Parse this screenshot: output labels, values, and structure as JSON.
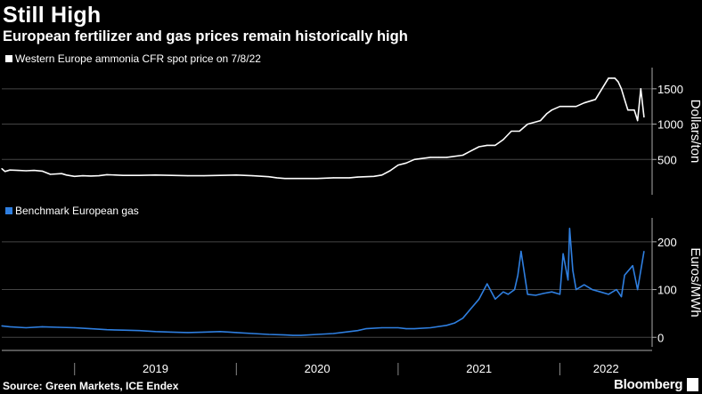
{
  "header": {
    "title": "Still High",
    "subtitle": "European fertilizer and gas prices remain historically high"
  },
  "footer": {
    "source": "Source: Green Markets, ICE Endex",
    "brand": "Bloomberg"
  },
  "colors": {
    "ammonia": "#ffffff",
    "gas": "#2f7fe0",
    "grid": "#444444",
    "background": "#000000"
  },
  "chart_data": [
    {
      "type": "line",
      "title": "",
      "ylabel": "Dollars/ton",
      "ylim": [
        0,
        1800
      ],
      "xlim": [
        2018.55,
        2022.57
      ],
      "x_ticks": [
        "2019",
        "2020",
        "2021",
        "2022"
      ],
      "y_ticks": [
        500,
        1000,
        1500
      ],
      "grid": true,
      "legend": "top-left",
      "series": [
        {
          "name": "Western Europe ammonia CFR spot price on 7/8/22",
          "x": [
            2018.55,
            2018.57,
            2018.6,
            2018.65,
            2018.7,
            2018.75,
            2018.8,
            2018.85,
            2018.92,
            2018.95,
            2019.0,
            2019.05,
            2019.1,
            2019.15,
            2019.2,
            2019.3,
            2019.4,
            2019.5,
            2019.6,
            2019.7,
            2019.8,
            2019.9,
            2020.0,
            2020.1,
            2020.2,
            2020.25,
            2020.3,
            2020.4,
            2020.5,
            2020.6,
            2020.7,
            2020.75,
            2020.85,
            2020.9,
            2020.95,
            2021.0,
            2021.05,
            2021.1,
            2021.2,
            2021.25,
            2021.3,
            2021.4,
            2021.45,
            2021.5,
            2021.55,
            2021.6,
            2021.65,
            2021.7,
            2021.75,
            2021.8,
            2021.88,
            2021.92,
            2021.95,
            2022.0,
            2022.05,
            2022.1,
            2022.15,
            2022.22,
            2022.3,
            2022.32,
            2022.34,
            2022.36,
            2022.38,
            2022.4,
            2022.42,
            2022.44,
            2022.46,
            2022.48,
            2022.5,
            2022.52
          ],
          "y": [
            370,
            330,
            350,
            345,
            340,
            345,
            335,
            290,
            300,
            280,
            260,
            270,
            265,
            270,
            285,
            275,
            275,
            280,
            275,
            270,
            270,
            275,
            280,
            270,
            255,
            240,
            230,
            230,
            230,
            240,
            240,
            250,
            260,
            280,
            340,
            420,
            450,
            500,
            530,
            530,
            530,
            560,
            620,
            680,
            700,
            700,
            780,
            900,
            900,
            1000,
            1050,
            1150,
            1200,
            1250,
            1250,
            1250,
            1300,
            1350,
            1650,
            1650,
            1650,
            1600,
            1500,
            1350,
            1200,
            1200,
            1200,
            1050,
            1500,
            1100
          ]
        }
      ]
    },
    {
      "type": "line",
      "title": "",
      "ylabel": "Euros/MWh",
      "ylim": [
        -20,
        250
      ],
      "xlim": [
        2018.55,
        2022.57
      ],
      "x_ticks": [
        "2019",
        "2020",
        "2021",
        "2022"
      ],
      "y_ticks": [
        0,
        100,
        200
      ],
      "grid": true,
      "legend": "top-left",
      "series": [
        {
          "name": "Benchmark European gas",
          "x": [
            2018.55,
            2018.6,
            2018.7,
            2018.8,
            2018.9,
            2019.0,
            2019.1,
            2019.2,
            2019.3,
            2019.4,
            2019.5,
            2019.6,
            2019.7,
            2019.8,
            2019.9,
            2020.0,
            2020.1,
            2020.2,
            2020.3,
            2020.35,
            2020.4,
            2020.5,
            2020.6,
            2020.7,
            2020.75,
            2020.8,
            2020.9,
            2021.0,
            2021.05,
            2021.1,
            2021.2,
            2021.3,
            2021.35,
            2021.4,
            2021.45,
            2021.5,
            2021.55,
            2021.6,
            2021.65,
            2021.68,
            2021.72,
            2021.74,
            2021.76,
            2021.8,
            2021.85,
            2021.9,
            2021.95,
            2022.0,
            2022.02,
            2022.05,
            2022.06,
            2022.08,
            2022.1,
            2022.15,
            2022.2,
            2022.25,
            2022.3,
            2022.35,
            2022.38,
            2022.4,
            2022.45,
            2022.48,
            2022.5,
            2022.52
          ],
          "y": [
            24,
            22,
            20,
            22,
            21,
            20,
            18,
            16,
            15,
            14,
            12,
            11,
            10,
            11,
            12,
            10,
            8,
            6,
            5,
            4,
            4,
            6,
            8,
            12,
            14,
            18,
            20,
            20,
            18,
            18,
            20,
            25,
            30,
            40,
            60,
            80,
            112,
            80,
            95,
            90,
            100,
            130,
            180,
            90,
            88,
            92,
            95,
            90,
            175,
            120,
            228,
            140,
            100,
            110,
            100,
            95,
            90,
            100,
            85,
            130,
            150,
            100,
            140,
            180
          ]
        }
      ]
    }
  ]
}
